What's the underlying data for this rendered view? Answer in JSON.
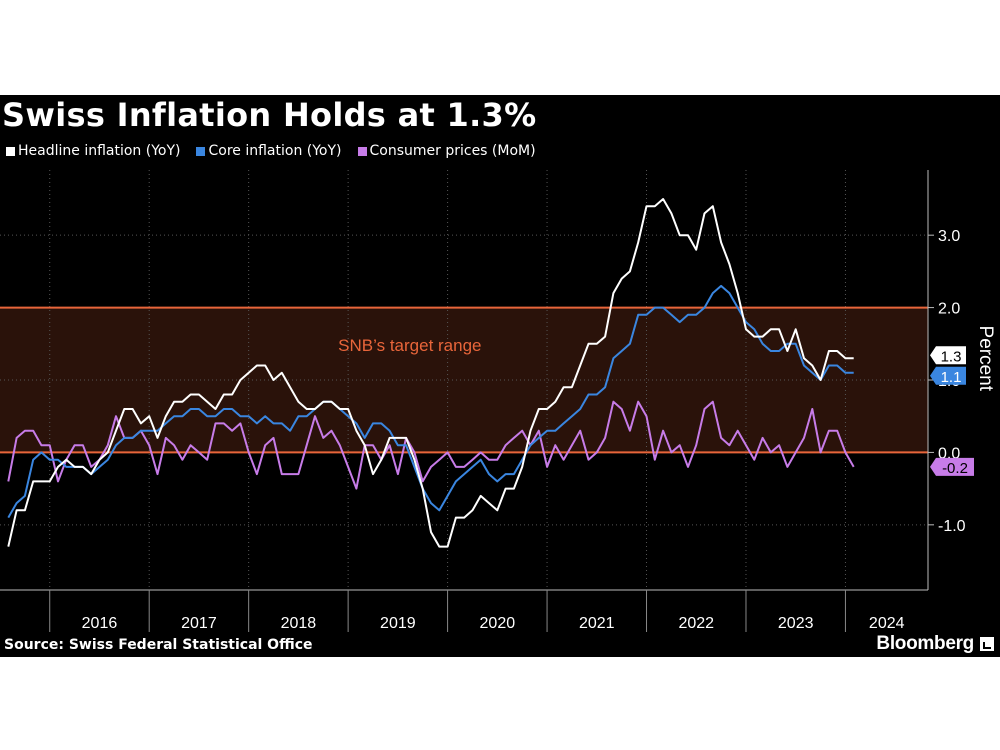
{
  "colors": {
    "background": "#000000",
    "headline": "#ffffff",
    "core": "#3a86e0",
    "mom": "#c77ce8",
    "target_fill": "#2a120a",
    "target_line": "#e8653a",
    "grid": "#555555"
  },
  "source": "Source: Swiss Federal Statistical Office",
  "brand": {
    "name": "Bloomberg",
    "icon": "bloomberg-logo-icon"
  },
  "chart_data": {
    "type": "line",
    "title": "Swiss Inflation Holds at 1.3%",
    "xlabel": "",
    "ylabel": "Percent",
    "ylim": [
      -1.9,
      3.9
    ],
    "xlim": [
      2015.5,
      2024.83
    ],
    "y_ticks": [
      -1,
      0,
      1,
      2,
      3
    ],
    "y_tick_labels": [
      "-1.0",
      "0.0",
      "1.0",
      "2.0",
      "3.0"
    ],
    "x_category_labels": [
      "2016",
      "2017",
      "2018",
      "2019",
      "2020",
      "2021",
      "2022",
      "2023",
      "2024"
    ],
    "grid": true,
    "legend_position": "top-left",
    "target_range": {
      "low": 0,
      "high": 2,
      "label": "SNB’s target range"
    },
    "series": [
      {
        "name": "Headline inflation (YoY)",
        "values": [
          -1.3,
          -0.8,
          -0.8,
          -0.4,
          -0.4,
          -0.4,
          -0.2,
          -0.1,
          -0.2,
          -0.2,
          -0.3,
          -0.1,
          0.0,
          0.3,
          0.6,
          0.6,
          0.4,
          0.5,
          0.2,
          0.5,
          0.7,
          0.7,
          0.8,
          0.8,
          0.7,
          0.6,
          0.8,
          0.8,
          1.0,
          1.1,
          1.2,
          1.2,
          1.0,
          1.1,
          0.9,
          0.7,
          0.6,
          0.6,
          0.7,
          0.7,
          0.6,
          0.6,
          0.3,
          0.1,
          -0.3,
          -0.1,
          0.2,
          0.2,
          0.2,
          -0.1,
          -0.5,
          -1.1,
          -1.3,
          -1.3,
          -0.9,
          -0.9,
          -0.8,
          -0.6,
          -0.7,
          -0.8,
          -0.5,
          -0.5,
          -0.2,
          0.3,
          0.6,
          0.6,
          0.7,
          0.9,
          0.9,
          1.2,
          1.5,
          1.5,
          1.6,
          2.2,
          2.4,
          2.5,
          2.9,
          3.4,
          3.4,
          3.5,
          3.3,
          3.0,
          3.0,
          2.8,
          3.3,
          3.4,
          2.9,
          2.6,
          2.2,
          1.7,
          1.6,
          1.6,
          1.7,
          1.7,
          1.4,
          1.7,
          1.3,
          1.2,
          1.0,
          1.4,
          1.4,
          1.3,
          1.3
        ],
        "latest_label": "1.3",
        "color": "#ffffff"
      },
      {
        "name": "Core inflation (YoY)",
        "values": [
          -0.9,
          -0.7,
          -0.6,
          -0.1,
          0.0,
          -0.1,
          -0.1,
          -0.2,
          -0.2,
          -0.2,
          -0.3,
          -0.2,
          -0.1,
          0.1,
          0.2,
          0.2,
          0.3,
          0.3,
          0.3,
          0.4,
          0.5,
          0.5,
          0.6,
          0.6,
          0.5,
          0.5,
          0.6,
          0.6,
          0.5,
          0.5,
          0.4,
          0.5,
          0.4,
          0.4,
          0.3,
          0.5,
          0.5,
          0.6,
          0.7,
          0.7,
          0.6,
          0.5,
          0.4,
          0.2,
          0.4,
          0.4,
          0.3,
          0.1,
          0.1,
          -0.2,
          -0.5,
          -0.7,
          -0.8,
          -0.6,
          -0.4,
          -0.3,
          -0.2,
          -0.1,
          -0.3,
          -0.4,
          -0.3,
          -0.3,
          -0.1,
          0.1,
          0.2,
          0.3,
          0.3,
          0.4,
          0.5,
          0.6,
          0.8,
          0.8,
          0.9,
          1.3,
          1.4,
          1.5,
          1.9,
          1.9,
          2.0,
          2.0,
          1.9,
          1.8,
          1.9,
          1.9,
          2.0,
          2.2,
          2.3,
          2.2,
          2.0,
          1.8,
          1.7,
          1.5,
          1.4,
          1.4,
          1.5,
          1.5,
          1.2,
          1.1,
          1.0,
          1.2,
          1.2,
          1.1,
          1.1
        ],
        "latest_label": "1.1",
        "color": "#3a86e0"
      },
      {
        "name": "Consumer prices (MoM)",
        "values": [
          -0.4,
          0.2,
          0.3,
          0.3,
          0.1,
          0.1,
          -0.4,
          -0.1,
          0.1,
          0.1,
          -0.2,
          -0.1,
          0.1,
          0.5,
          0.2,
          0.2,
          0.3,
          0.1,
          -0.3,
          0.2,
          0.1,
          -0.1,
          0.1,
          0.0,
          -0.1,
          0.4,
          0.4,
          0.3,
          0.4,
          0.0,
          -0.3,
          0.1,
          0.2,
          -0.3,
          -0.3,
          -0.3,
          0.1,
          0.5,
          0.2,
          0.3,
          0.1,
          -0.2,
          -0.5,
          0.1,
          0.1,
          -0.1,
          0.1,
          -0.3,
          0.2,
          0.0,
          -0.4,
          -0.2,
          -0.1,
          0.0,
          -0.2,
          -0.2,
          -0.1,
          0.0,
          -0.1,
          -0.1,
          0.1,
          0.2,
          0.3,
          0.1,
          0.3,
          -0.2,
          0.1,
          -0.1,
          0.1,
          0.3,
          -0.1,
          0.0,
          0.2,
          0.7,
          0.6,
          0.3,
          0.7,
          0.5,
          -0.1,
          0.3,
          0.0,
          0.1,
          -0.2,
          0.1,
          0.6,
          0.7,
          0.2,
          0.1,
          0.3,
          0.1,
          -0.1,
          0.2,
          0.0,
          0.1,
          -0.2,
          0.0,
          0.2,
          0.6,
          0.0,
          0.3,
          0.3,
          0.0,
          -0.2
        ],
        "latest_label": "-0.2",
        "color": "#c77ce8"
      }
    ],
    "x_start": "2015-08",
    "x_step_months": 1
  }
}
